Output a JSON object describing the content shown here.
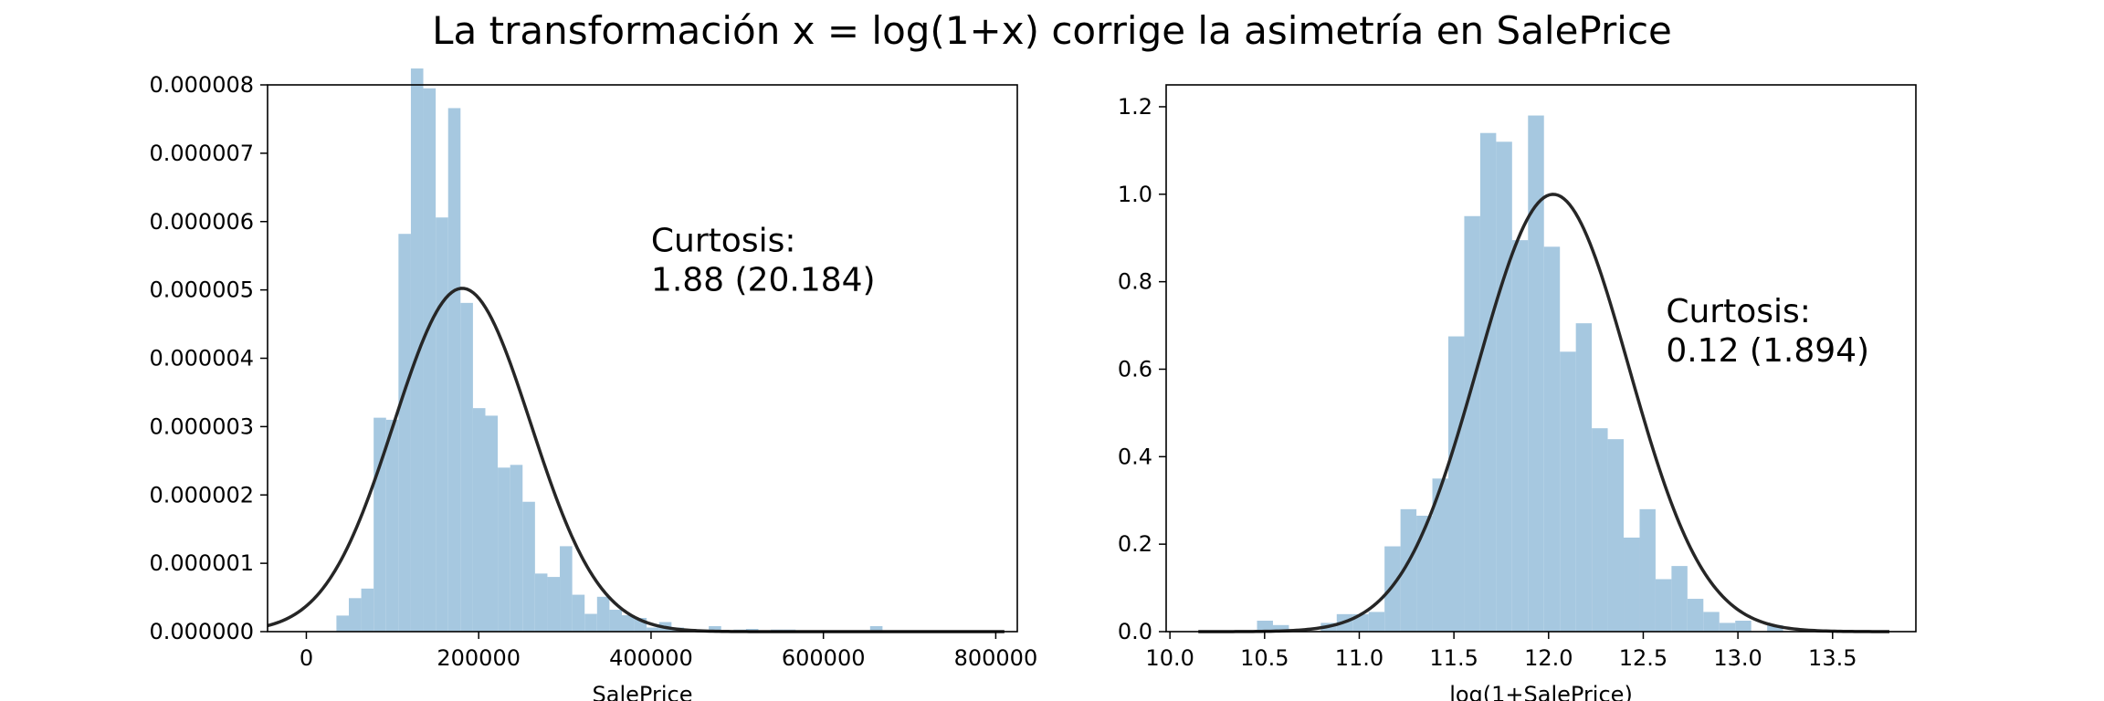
{
  "title": "La transformación x = log(1+x) corrige la asimetría en SalePrice",
  "chart_data": [
    {
      "type": "histogram",
      "xlabel": "SalePrice",
      "ylabel": "",
      "xlim": [
        -45000,
        825000
      ],
      "ylim": [
        0,
        8e-06
      ],
      "xticks": [
        0,
        200000,
        400000,
        600000,
        800000
      ],
      "yticks": [
        0.0,
        1e-06,
        2e-06,
        3e-06,
        4e-06,
        5e-06,
        6e-06,
        7e-06,
        8e-06
      ],
      "ytick_labels": [
        "0.000000",
        "0.000001",
        "0.000002",
        "0.000003",
        "0.000004",
        "0.000005",
        "0.000006",
        "0.000007",
        "0.000008"
      ],
      "xtick_labels": [
        "0",
        "200000",
        "400000",
        "600000",
        "800000"
      ],
      "bins": {
        "start": 34900,
        "width": 14402,
        "values": [
          2.35e-07,
          4.9e-07,
          6.3e-07,
          3.13e-06,
          3.1e-06,
          5.82e-06,
          8.27e-06,
          7.95e-06,
          6.06e-06,
          7.66e-06,
          4.81e-06,
          3.27e-06,
          3.16e-06,
          2.4e-06,
          2.44e-06,
          1.9e-06,
          8.5e-07,
          8e-07,
          1.25e-06,
          5.4e-07,
          2.6e-07,
          5.1e-07,
          3.2e-07,
          2.4e-07,
          2e-07,
          6e-08,
          1.4e-07,
          6e-08,
          4e-08,
          3e-08,
          8e-08,
          2e-08,
          3e-08,
          4e-08,
          2e-08,
          3e-08,
          3e-08,
          0.0,
          0.0,
          0.0,
          0.0,
          0.0,
          0.0,
          8e-08,
          0.0,
          0.0,
          0.0,
          0.0,
          0.0,
          0.0
        ]
      },
      "fit": {
        "distribution": "normal",
        "mean": 180921,
        "std": 79415,
        "xrange": [
          -45000,
          810000
        ]
      },
      "annotation": {
        "line1": "Curtosis:",
        "line2": "1.88 (20.184)",
        "x": 400000,
        "y": 5e-06
      }
    },
    {
      "type": "histogram",
      "xlabel": "log(1+SalePrice)",
      "ylabel": "",
      "xlim": [
        9.98,
        13.94
      ],
      "ylim": [
        0,
        1.25
      ],
      "xticks": [
        10.0,
        10.5,
        11.0,
        11.5,
        12.0,
        12.5,
        13.0,
        13.5
      ],
      "xtick_labels": [
        "10.0",
        "10.5",
        "11.0",
        "11.5",
        "12.0",
        "12.5",
        "13.0",
        "13.5"
      ],
      "yticks": [
        0.0,
        0.2,
        0.4,
        0.6,
        0.8,
        1.0,
        1.2
      ],
      "ytick_labels": [
        "0.0",
        "0.2",
        "0.4",
        "0.6",
        "0.8",
        "1.0",
        "1.2"
      ],
      "bins": {
        "start": 10.46,
        "width": 0.0842,
        "values": [
          0.025,
          0.015,
          0.0,
          0.0,
          0.02,
          0.04,
          0.04,
          0.045,
          0.195,
          0.28,
          0.265,
          0.35,
          0.675,
          0.95,
          1.14,
          1.12,
          0.895,
          1.18,
          0.88,
          0.64,
          0.705,
          0.465,
          0.44,
          0.215,
          0.28,
          0.12,
          0.15,
          0.075,
          0.045,
          0.02,
          0.025,
          0.0,
          0.015,
          0.0,
          0.0
        ]
      },
      "fit": {
        "distribution": "normal",
        "mean": 12.024,
        "std": 0.399,
        "xrange": [
          10.15,
          13.8
        ]
      },
      "annotation": {
        "line1": "Curtosis:",
        "line2": "0.12 (1.894)",
        "x": 12.62,
        "y": 0.62
      }
    }
  ],
  "colors": {
    "bars": "#a6c8e0",
    "curve": "#262626",
    "frame": "#000000"
  }
}
